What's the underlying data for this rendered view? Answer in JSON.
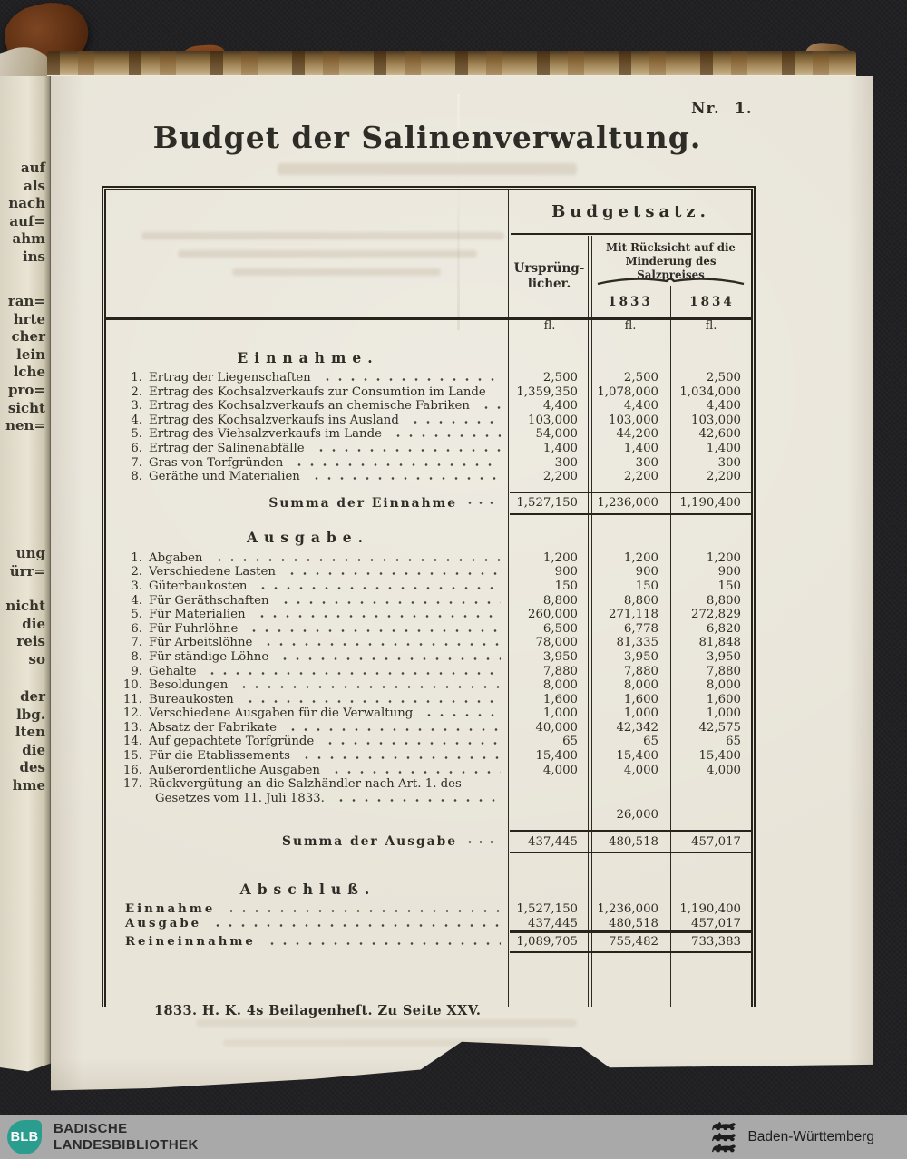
{
  "page": {
    "nr_label": "Nr.",
    "nr_value": "1.",
    "title": "Budget der Salinenverwaltung.",
    "imprint": "1833. H. K. 4s Beilagenheft. Zu Seite XXV."
  },
  "table": {
    "header": {
      "budgetsatz": "Budgetsatz.",
      "original_line1": "Ursprüng-",
      "original_line2": "licher.",
      "reduced_line1": "Mit Rücksicht auf die",
      "reduced_line2": "Minderung des Salzpreises",
      "year_1833": "1833",
      "year_1834": "1834",
      "unit": "fl."
    },
    "einnahme": {
      "heading": "Einnahme.",
      "rows": [
        {
          "nr": "1.",
          "label": "Ertrag der Liegenschaften",
          "values": [
            "2,500",
            "2,500",
            "2,500"
          ]
        },
        {
          "nr": "2.",
          "label": "Ertrag des Kochsalzverkaufs zur Consumtion im Lande",
          "values": [
            "1,359,350",
            "1,078,000",
            "1,034,000"
          ]
        },
        {
          "nr": "3.",
          "label": "Ertrag des Kochsalzverkaufs an chemische Fabriken",
          "values": [
            "4,400",
            "4,400",
            "4,400"
          ]
        },
        {
          "nr": "4.",
          "label": "Ertrag des Kochsalzverkaufs ins Ausland",
          "values": [
            "103,000",
            "103,000",
            "103,000"
          ]
        },
        {
          "nr": "5.",
          "label": "Ertrag des Viehsalzverkaufs im Lande",
          "values": [
            "54,000",
            "44,200",
            "42,600"
          ]
        },
        {
          "nr": "6.",
          "label": "Ertrag der Salinenabfälle",
          "values": [
            "1,400",
            "1,400",
            "1,400"
          ]
        },
        {
          "nr": "7.",
          "label": "Gras von Torfgründen",
          "values": [
            "300",
            "300",
            "300"
          ]
        },
        {
          "nr": "8.",
          "label": "Geräthe und Materialien",
          "values": [
            "2,200",
            "2,200",
            "2,200"
          ]
        }
      ],
      "summa_label": "Summa der Einnahme",
      "summa_values": [
        "1,527,150",
        "1,236,000",
        "1,190,400"
      ]
    },
    "ausgabe": {
      "heading": "Ausgabe.",
      "rows": [
        {
          "nr": "1.",
          "label": "Abgaben",
          "values": [
            "1,200",
            "1,200",
            "1,200"
          ]
        },
        {
          "nr": "2.",
          "label": "Verschiedene Lasten",
          "values": [
            "900",
            "900",
            "900"
          ]
        },
        {
          "nr": "3.",
          "label": "Güterbaukosten",
          "values": [
            "150",
            "150",
            "150"
          ]
        },
        {
          "nr": "4.",
          "label": "Für Geräthschaften",
          "values": [
            "8,800",
            "8,800",
            "8,800"
          ]
        },
        {
          "nr": "5.",
          "label": "Für Materialien",
          "values": [
            "260,000",
            "271,118",
            "272,829"
          ]
        },
        {
          "nr": "6.",
          "label": "Für Fuhrlöhne",
          "values": [
            "6,500",
            "6,778",
            "6,820"
          ]
        },
        {
          "nr": "7.",
          "label": "Für Arbeitslöhne",
          "values": [
            "78,000",
            "81,335",
            "81,848"
          ]
        },
        {
          "nr": "8.",
          "label": "Für ständige Löhne",
          "values": [
            "3,950",
            "3,950",
            "3,950"
          ]
        },
        {
          "nr": "9.",
          "label": "Gehalte",
          "values": [
            "7,880",
            "7,880",
            "7,880"
          ]
        },
        {
          "nr": "10.",
          "label": "Besoldungen",
          "values": [
            "8,000",
            "8,000",
            "8,000"
          ]
        },
        {
          "nr": "11.",
          "label": "Bureaukosten",
          "values": [
            "1,600",
            "1,600",
            "1,600"
          ]
        },
        {
          "nr": "12.",
          "label": "Verschiedene Ausgaben für die Verwaltung",
          "values": [
            "1,000",
            "1,000",
            "1,000"
          ]
        },
        {
          "nr": "13.",
          "label": "Absatz der Fabrikate",
          "values": [
            "40,000",
            "42,342",
            "42,575"
          ]
        },
        {
          "nr": "14.",
          "label": "Auf gepachtete Torfgründe",
          "values": [
            "65",
            "65",
            "65"
          ]
        },
        {
          "nr": "15.",
          "label": "Für die Etablissements",
          "values": [
            "15,400",
            "15,400",
            "15,400"
          ]
        },
        {
          "nr": "16.",
          "label": "Außerordentliche Ausgaben",
          "values": [
            "4,000",
            "4,000",
            "4,000"
          ]
        },
        {
          "nr": "17.",
          "label": "Rückvergütung an die Salzhändler nach Art. 1. des",
          "label_line2": "Gesetzes vom 11. Juli 1833.",
          "values": [
            "",
            "",
            ""
          ],
          "sub_values": [
            "",
            "26,000",
            ""
          ]
        }
      ],
      "summa_label": "Summa der Ausgabe",
      "summa_values": [
        "437,445",
        "480,518",
        "457,017"
      ]
    },
    "abschluss": {
      "heading": "Abschluß.",
      "rows": [
        {
          "label": "Einnahme",
          "values": [
            "1,527,150",
            "1,236,000",
            "1,190,400"
          ],
          "rule_top": false,
          "rule_bot": false
        },
        {
          "label": "Ausgabe",
          "values": [
            "437,445",
            "480,518",
            "457,017"
          ],
          "rule_top": false,
          "rule_bot": true
        },
        {
          "label": "Reineinnahme",
          "values": [
            "1,089,705",
            "755,482",
            "733,383"
          ],
          "rule_top": false,
          "rule_bot": true
        }
      ]
    }
  },
  "margin_fragments": {
    "g1": [
      "auf",
      "als",
      "nach",
      "auf=",
      "ahm",
      "ins"
    ],
    "g2": [
      "ran=",
      "hrte",
      "cher",
      "lein",
      "lche",
      "pro=",
      "sicht",
      "nen="
    ],
    "g3": [
      "ung",
      "ürr="
    ],
    "g4": [
      "nicht",
      "die",
      "reis",
      "so"
    ],
    "g5": [
      "der",
      "lbg.",
      "lten",
      "die",
      "des",
      "hme"
    ]
  },
  "footer_bar": {
    "logo": "BLB",
    "library_line1": "BADISCHE",
    "library_line2": "LANDESBIBLIOTHEK",
    "state": "Baden-Württemberg"
  },
  "colors": {
    "footer_teal": "#2a9d8f",
    "footer_gray": "#a9a9a9",
    "paper": "#e8e4d8",
    "ink": "#2e2c26",
    "background": "#1e1e21"
  }
}
